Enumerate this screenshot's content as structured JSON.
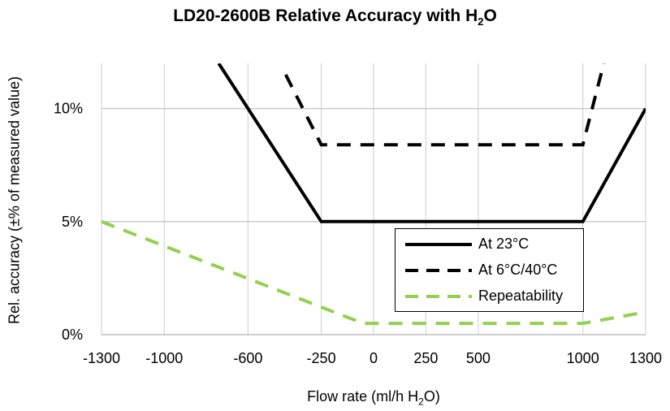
{
  "chart_data": {
    "type": "line",
    "title_main": "LD20-2600B Relative Accuracy with H",
    "title_sub": "2",
    "title_end": "O",
    "xlabel_main": "Flow rate (ml/h H",
    "xlabel_sub": "2",
    "xlabel_end": "O)",
    "ylabel": "Rel. accuracy (±% of measured  value)",
    "xlim": [
      -1300,
      1300
    ],
    "ylim": [
      0,
      12
    ],
    "x_gridlines": [
      -1300,
      -1000,
      -600,
      -250,
      0,
      250,
      500,
      1000,
      1300
    ],
    "x_ticks": [
      {
        "value": -1300,
        "label": "-1300"
      },
      {
        "value": -1000,
        "label": "-1000"
      },
      {
        "value": -600,
        "label": "-600"
      },
      {
        "value": -250,
        "label": "-250"
      },
      {
        "value": 0,
        "label": "0"
      },
      {
        "value": 250,
        "label": "250"
      },
      {
        "value": 500,
        "label": "500"
      },
      {
        "value": 1000,
        "label": "1000"
      },
      {
        "value": 1300,
        "label": "1300"
      }
    ],
    "y_ticks": [
      {
        "value": 0,
        "label": "0%"
      },
      {
        "value": 5,
        "label": "5%"
      },
      {
        "value": 10,
        "label": "10%"
      }
    ],
    "grid": true,
    "legend_position": "bottom-right",
    "series": [
      {
        "name": "At 23°C",
        "color": "#000000",
        "style": "solid",
        "points": [
          [
            -740,
            12
          ],
          [
            -250,
            5
          ],
          [
            1000,
            5
          ],
          [
            1300,
            10
          ]
        ]
      },
      {
        "name": "At 6°C/40°C",
        "color": "#000000",
        "style": "dashed",
        "points": [
          [
            -420,
            11.5
          ],
          [
            -250,
            8.4
          ],
          [
            1000,
            8.4
          ],
          [
            1100,
            12
          ]
        ]
      },
      {
        "name": "Repeatability",
        "color": "#92d050",
        "style": "dashed",
        "points": [
          [
            -1300,
            5
          ],
          [
            -50,
            0.5
          ],
          [
            1000,
            0.5
          ],
          [
            1300,
            1
          ]
        ]
      }
    ]
  }
}
